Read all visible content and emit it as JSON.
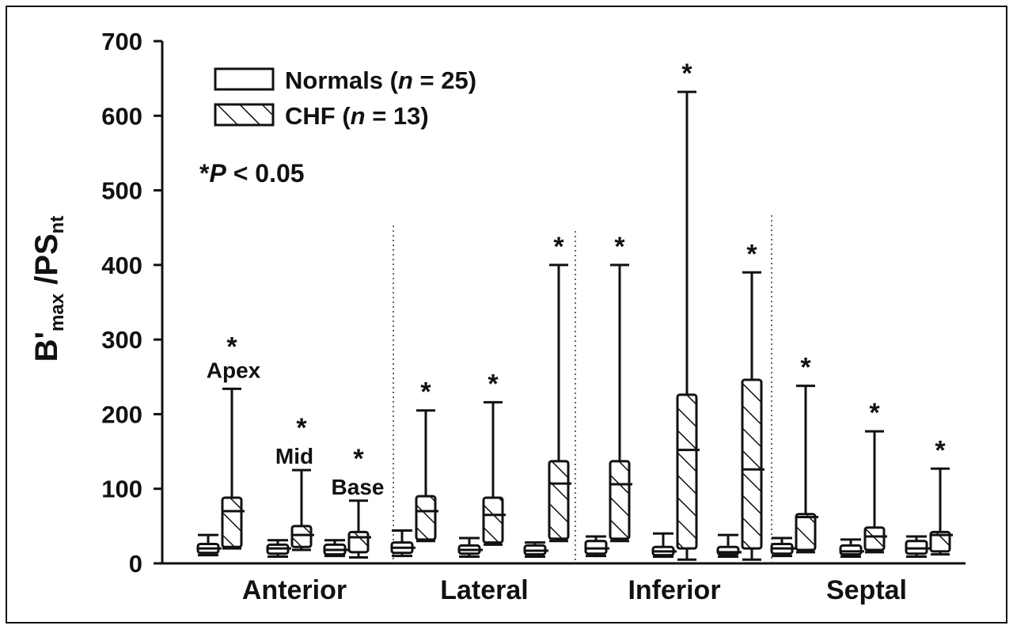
{
  "chart_data": {
    "type": "box",
    "ylabel": {
      "main": "B'",
      "sub1": "max",
      "mid": " /PS",
      "sub2": "nt"
    },
    "ylim": [
      0,
      700
    ],
    "yticks": [
      0,
      100,
      200,
      300,
      400,
      500,
      600,
      700
    ],
    "groups": [
      "Anterior",
      "Lateral",
      "Inferior",
      "Septal"
    ],
    "segment_labels": [
      "Apex",
      "Mid",
      "Base"
    ],
    "legend": {
      "normals_text": "Normals (",
      "normals_n": "n",
      "normals_rest": " = 25)",
      "chf_text": "CHF (",
      "chf_n": "n",
      "chf_rest": " = 13)"
    },
    "significance": {
      "star": "*",
      "p_letter": "P",
      "p_rest": " < 0.05"
    },
    "series": [
      {
        "name": "Normals",
        "pattern": "open",
        "boxes": [
          {
            "group": "Anterior",
            "segment": "Apex",
            "min": 11,
            "q1": 14,
            "median": 20,
            "q3": 26,
            "max": 38
          },
          {
            "group": "Anterior",
            "segment": "Mid",
            "min": 9,
            "q1": 13,
            "median": 20,
            "q3": 25,
            "max": 31
          },
          {
            "group": "Anterior",
            "segment": "Base",
            "min": 10,
            "q1": 12,
            "median": 18,
            "q3": 25,
            "max": 31
          },
          {
            "group": "Lateral",
            "segment": "Apex",
            "min": 10,
            "q1": 14,
            "median": 21,
            "q3": 28,
            "max": 44
          },
          {
            "group": "Lateral",
            "segment": "Mid",
            "min": 9,
            "q1": 13,
            "median": 18,
            "q3": 24,
            "max": 34
          },
          {
            "group": "Lateral",
            "segment": "Base",
            "min": 9,
            "q1": 12,
            "median": 17,
            "q3": 24,
            "max": 28
          },
          {
            "group": "Inferior",
            "segment": "Apex",
            "min": 10,
            "q1": 13,
            "median": 20,
            "q3": 30,
            "max": 36
          },
          {
            "group": "Inferior",
            "segment": "Mid",
            "min": 9,
            "q1": 11,
            "median": 16,
            "q3": 22,
            "max": 40
          },
          {
            "group": "Inferior",
            "segment": "Base",
            "min": 9,
            "q1": 12,
            "median": 15,
            "q3": 22,
            "max": 38
          },
          {
            "group": "Septal",
            "segment": "Apex",
            "min": 10,
            "q1": 13,
            "median": 20,
            "q3": 26,
            "max": 34
          },
          {
            "group": "Septal",
            "segment": "Mid",
            "min": 9,
            "q1": 12,
            "median": 16,
            "q3": 24,
            "max": 32
          },
          {
            "group": "Septal",
            "segment": "Base",
            "min": 9,
            "q1": 13,
            "median": 20,
            "q3": 30,
            "max": 36
          }
        ]
      },
      {
        "name": "CHF",
        "pattern": "hatched",
        "boxes": [
          {
            "group": "Anterior",
            "segment": "Apex",
            "min": 20,
            "q1": 22,
            "median": 70,
            "q3": 88,
            "max": 234,
            "sig": true
          },
          {
            "group": "Anterior",
            "segment": "Mid",
            "min": 18,
            "q1": 22,
            "median": 38,
            "q3": 50,
            "max": 125,
            "sig": true
          },
          {
            "group": "Anterior",
            "segment": "Base",
            "min": 8,
            "q1": 15,
            "median": 35,
            "q3": 42,
            "max": 84,
            "sig": true
          },
          {
            "group": "Lateral",
            "segment": "Apex",
            "min": 30,
            "q1": 32,
            "median": 70,
            "q3": 90,
            "max": 205,
            "sig": true
          },
          {
            "group": "Lateral",
            "segment": "Mid",
            "min": 25,
            "q1": 28,
            "median": 65,
            "q3": 88,
            "max": 216,
            "sig": true
          },
          {
            "group": "Lateral",
            "segment": "Base",
            "min": 30,
            "q1": 33,
            "median": 107,
            "q3": 137,
            "max": 400,
            "sig": true
          },
          {
            "group": "Inferior",
            "segment": "Apex",
            "min": 30,
            "q1": 33,
            "median": 106,
            "q3": 137,
            "max": 400,
            "sig": true
          },
          {
            "group": "Inferior",
            "segment": "Mid",
            "min": 5,
            "q1": 20,
            "median": 152,
            "q3": 226,
            "max": 632,
            "sig": true
          },
          {
            "group": "Inferior",
            "segment": "Base",
            "min": 5,
            "q1": 20,
            "median": 126,
            "q3": 246,
            "max": 390,
            "sig": true
          },
          {
            "group": "Septal",
            "segment": "Apex",
            "min": 15,
            "q1": 18,
            "median": 62,
            "q3": 66,
            "max": 238,
            "sig": true
          },
          {
            "group": "Septal",
            "segment": "Mid",
            "min": 15,
            "q1": 18,
            "median": 36,
            "q3": 48,
            "max": 177,
            "sig": true
          },
          {
            "group": "Septal",
            "segment": "Base",
            "min": 12,
            "q1": 16,
            "median": 38,
            "q3": 42,
            "max": 127,
            "sig": true
          }
        ]
      }
    ]
  }
}
